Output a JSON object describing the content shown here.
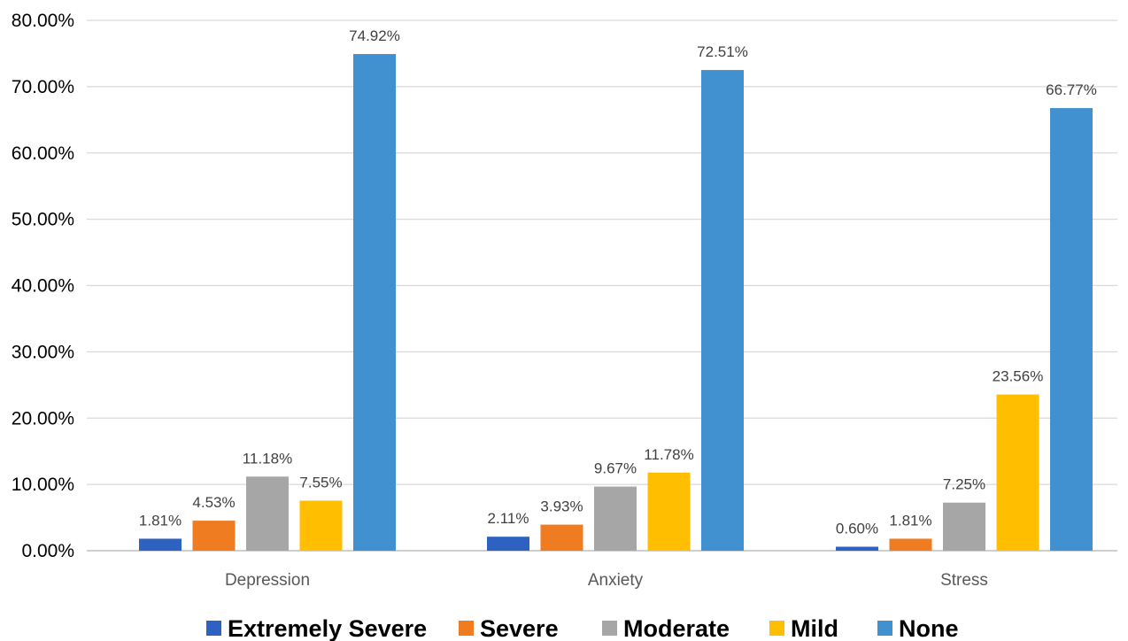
{
  "chart_data": {
    "type": "bar",
    "title": "",
    "xlabel": "",
    "ylabel": "",
    "categories": [
      "Depression",
      "Anxiety",
      "Stress"
    ],
    "series": [
      {
        "name": "Extremely Severe",
        "color": "#2e62c0",
        "values": [
          1.81,
          2.11,
          0.6
        ],
        "labels": [
          "1.81%",
          "2.11%",
          "0.60%"
        ]
      },
      {
        "name": "Severe",
        "color": "#f07c22",
        "values": [
          4.53,
          3.93,
          1.81
        ],
        "labels": [
          "4.53%",
          "3.93%",
          "1.81%"
        ]
      },
      {
        "name": "Moderate",
        "color": "#a6a6a6",
        "values": [
          11.18,
          9.67,
          7.25
        ],
        "labels": [
          "11.18%",
          "9.67%",
          "7.25%"
        ]
      },
      {
        "name": "Mild",
        "color": "#ffbf00",
        "values": [
          7.55,
          11.78,
          23.56
        ],
        "labels": [
          "7.55%",
          "11.78%",
          "23.56%"
        ]
      },
      {
        "name": "None",
        "color": "#4191d0",
        "values": [
          74.92,
          72.51,
          66.77
        ],
        "labels": [
          "74.92%",
          "72.51%",
          "66.77%"
        ]
      }
    ],
    "ylim": [
      0,
      80
    ],
    "yticks": [
      0,
      10,
      20,
      30,
      40,
      50,
      60,
      70,
      80
    ],
    "ytick_labels": [
      "0.00%",
      "10.00%",
      "20.00%",
      "30.00%",
      "40.00%",
      "50.00%",
      "60.00%",
      "70.00%",
      "80.00%"
    ],
    "grid": true,
    "legend_position": "bottom"
  }
}
